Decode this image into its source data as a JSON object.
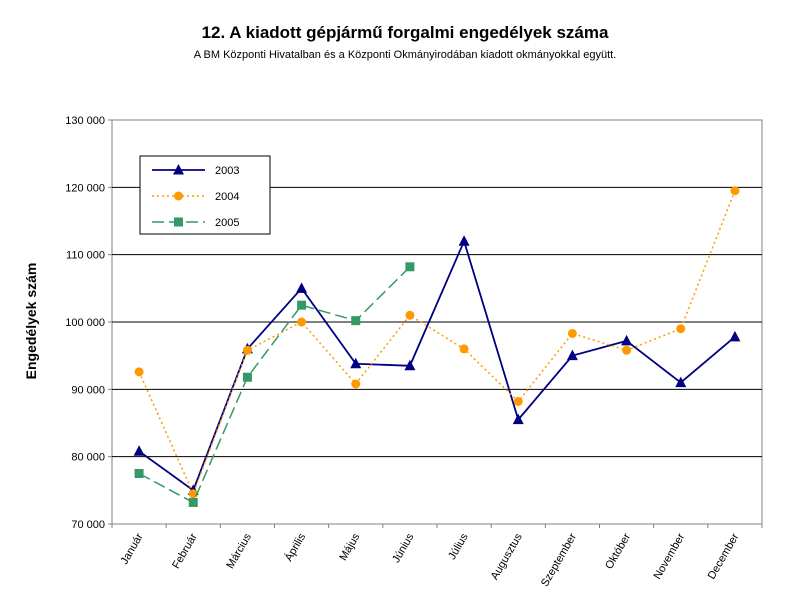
{
  "chart_data": {
    "type": "line",
    "title": "12. A  kiadott gépjármű forgalmi engedélyek száma",
    "subtitle": "A BM Központi Hivatalban és a Központi Okmányirodában kiadott okmányokkal együtt.",
    "ylabel": "Engedélyek szám",
    "xlabel": "",
    "ylim": [
      70000,
      130000
    ],
    "yticks": [
      70000,
      80000,
      90000,
      100000,
      110000,
      120000,
      130000
    ],
    "ytick_labels": [
      "70 000",
      "80 000",
      "90 000",
      "100 000",
      "110 000",
      "120 000",
      "130 000"
    ],
    "grid": true,
    "legend_position": "top-left",
    "categories": [
      "Január",
      "Február",
      "Március",
      "Április",
      "Május",
      "Június",
      "Július",
      "Augusztus",
      "Szeptember",
      "Október",
      "November",
      "December"
    ],
    "series": [
      {
        "name": "2003",
        "color": "#000080",
        "marker": "triangle",
        "style": "solid",
        "values": [
          80800,
          75000,
          96000,
          105000,
          93800,
          93500,
          112000,
          85500,
          95000,
          97200,
          91000,
          97800
        ]
      },
      {
        "name": "2004",
        "color": "#FF9900",
        "marker": "circle",
        "style": "dotted",
        "values": [
          92600,
          74500,
          95800,
          100000,
          90800,
          101000,
          96000,
          88200,
          98300,
          95800,
          99000,
          119500
        ]
      },
      {
        "name": "2005",
        "color": "#339966",
        "marker": "square",
        "style": "dashed",
        "values": [
          77500,
          73200,
          91800,
          102500,
          100200,
          108200,
          null,
          null,
          null,
          null,
          null,
          null
        ]
      }
    ]
  }
}
